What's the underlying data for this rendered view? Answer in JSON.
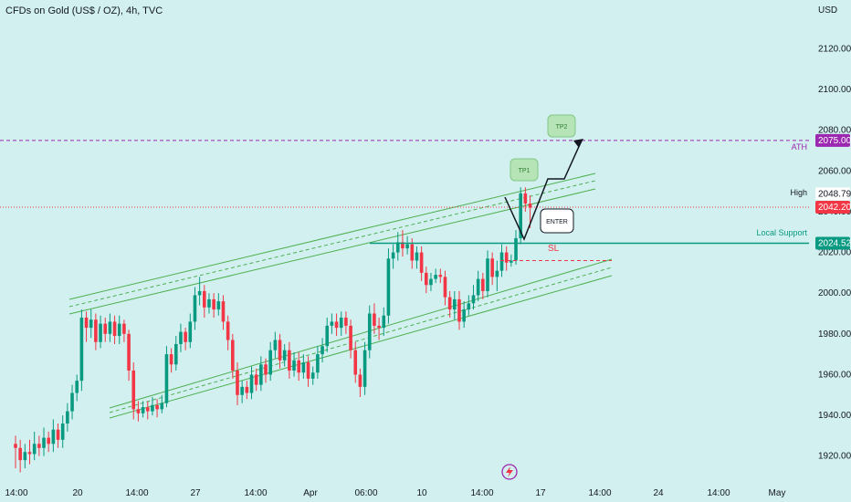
{
  "header": {
    "title": "CFDs on Gold (US$ / OZ), 4h, TVC",
    "currency": "USD"
  },
  "chart_data": {
    "type": "candlestick",
    "title": "CFDs on Gold (US$ / OZ), 4h, TVC",
    "ylabel": "USD",
    "ylim": [
      1910,
      2135
    ],
    "y_ticks": [
      2120,
      2100,
      2080,
      2060,
      2040,
      2020,
      2000,
      1980,
      1960,
      1940,
      1920
    ],
    "y_tick_labels": [
      "2120.00",
      "2100.00",
      "2080.00",
      "2060.00",
      "2040.00",
      "2020.00",
      "2000.00",
      "1980.00",
      "1960.00",
      "1940.00",
      "1920.00"
    ],
    "x_ticks": [
      "14:00",
      "20",
      "14:00",
      "27",
      "14:00",
      "Apr",
      "06:00",
      "10",
      "14:00",
      "17",
      "14:00",
      "24",
      "14:00",
      "May"
    ],
    "series": [
      {
        "kind": "candles",
        "points": [
          [
            1926,
            1924,
            1930,
            1914
          ],
          [
            1924,
            1918,
            1928,
            1912
          ],
          [
            1918,
            1922,
            1926,
            1914
          ],
          [
            1922,
            1921,
            1928,
            1916
          ],
          [
            1921,
            1926,
            1932,
            1918
          ],
          [
            1926,
            1924,
            1930,
            1920
          ],
          [
            1924,
            1929,
            1934,
            1920
          ],
          [
            1929,
            1926,
            1932,
            1922
          ],
          [
            1926,
            1933,
            1938,
            1922
          ],
          [
            1933,
            1928,
            1936,
            1924
          ],
          [
            1928,
            1936,
            1940,
            1924
          ],
          [
            1936,
            1942,
            1946,
            1932
          ],
          [
            1942,
            1951,
            1955,
            1938
          ],
          [
            1951,
            1957,
            1960,
            1947
          ],
          [
            1957,
            1988,
            1992,
            1952
          ],
          [
            1988,
            1983,
            1991,
            1976
          ],
          [
            1983,
            1987,
            1992,
            1978
          ],
          [
            1987,
            1976,
            1990,
            1972
          ],
          [
            1976,
            1985,
            1989,
            1973
          ],
          [
            1985,
            1980,
            1988,
            1976
          ],
          [
            1980,
            1986,
            1990,
            1976
          ],
          [
            1986,
            1979,
            1989,
            1975
          ],
          [
            1979,
            1985,
            1989,
            1975
          ],
          [
            1985,
            1980,
            1987,
            1976
          ],
          [
            1980,
            1962,
            1982,
            1957
          ],
          [
            1962,
            1943,
            1966,
            1938
          ],
          [
            1943,
            1941,
            1947,
            1937
          ],
          [
            1941,
            1944,
            1947,
            1939
          ],
          [
            1944,
            1942,
            1947,
            1938
          ],
          [
            1942,
            1945,
            1949,
            1940
          ],
          [
            1945,
            1943,
            1948,
            1939
          ],
          [
            1943,
            1946,
            1950,
            1941
          ],
          [
            1946,
            1970,
            1974,
            1944
          ],
          [
            1970,
            1965,
            1973,
            1961
          ],
          [
            1965,
            1975,
            1979,
            1962
          ],
          [
            1975,
            1981,
            1985,
            1971
          ],
          [
            1981,
            1976,
            1983,
            1972
          ],
          [
            1976,
            1986,
            1990,
            1973
          ],
          [
            1986,
            1999,
            2003,
            1982
          ],
          [
            1999,
            2001,
            2008,
            1994
          ],
          [
            2001,
            1993,
            2004,
            1988
          ],
          [
            1993,
            1997,
            2000,
            1990
          ],
          [
            1997,
            1992,
            2000,
            1988
          ],
          [
            1992,
            1996,
            2000,
            1989
          ],
          [
            1996,
            1986,
            1999,
            1982
          ],
          [
            1986,
            1977,
            1989,
            1972
          ],
          [
            1977,
            1962,
            1980,
            1958
          ],
          [
            1962,
            1950,
            1966,
            1945
          ],
          [
            1950,
            1954,
            1957,
            1946
          ],
          [
            1954,
            1951,
            1957,
            1948
          ],
          [
            1951,
            1960,
            1964,
            1948
          ],
          [
            1960,
            1955,
            1963,
            1952
          ],
          [
            1955,
            1965,
            1969,
            1952
          ],
          [
            1965,
            1960,
            1968,
            1956
          ],
          [
            1960,
            1972,
            1976,
            1957
          ],
          [
            1972,
            1977,
            1981,
            1968
          ],
          [
            1977,
            1967,
            1980,
            1963
          ],
          [
            1967,
            1972,
            1975,
            1964
          ],
          [
            1972,
            1962,
            1976,
            1958
          ],
          [
            1962,
            1967,
            1971,
            1959
          ],
          [
            1967,
            1961,
            1971,
            1957
          ],
          [
            1961,
            1966,
            1970,
            1958
          ],
          [
            1966,
            1958,
            1969,
            1954
          ],
          [
            1958,
            1961,
            1964,
            1955
          ],
          [
            1961,
            1970,
            1974,
            1958
          ],
          [
            1970,
            1974,
            1978,
            1966
          ],
          [
            1974,
            1984,
            1988,
            1971
          ],
          [
            1984,
            1986,
            1990,
            1980
          ],
          [
            1986,
            1983,
            1990,
            1979
          ],
          [
            1983,
            1988,
            1991,
            1979
          ],
          [
            1988,
            1984,
            1991,
            1980
          ],
          [
            1984,
            1972,
            1987,
            1968
          ],
          [
            1972,
            1960,
            1976,
            1956
          ],
          [
            1960,
            1954,
            1963,
            1949
          ],
          [
            1954,
            1972,
            1976,
            1950
          ],
          [
            1972,
            1990,
            1994,
            1968
          ],
          [
            1990,
            1984,
            1995,
            1980
          ],
          [
            1984,
            1983,
            1988,
            1977
          ],
          [
            1983,
            1989,
            1993,
            1979
          ],
          [
            1989,
            2017,
            2022,
            1985
          ],
          [
            2017,
            2020,
            2024,
            2012
          ],
          [
            2020,
            2025,
            2030,
            2016
          ],
          [
            2025,
            2022,
            2031,
            2018
          ],
          [
            2022,
            2024,
            2028,
            2019
          ],
          [
            2024,
            2016,
            2027,
            2012
          ],
          [
            2016,
            2020,
            2023,
            2012
          ],
          [
            2020,
            2010,
            2023,
            2006
          ],
          [
            2010,
            2004,
            2013,
            2000
          ],
          [
            2004,
            2007,
            2010,
            2001
          ],
          [
            2007,
            2009,
            2012,
            2005
          ],
          [
            2009,
            2008,
            2012,
            2005
          ],
          [
            2008,
            1998,
            2011,
            1994
          ],
          [
            1998,
            1992,
            2001,
            1988
          ],
          [
            1992,
            1997,
            2001,
            1987
          ],
          [
            1997,
            1986,
            2001,
            1982
          ],
          [
            1986,
            1992,
            1996,
            1983
          ],
          [
            1992,
            1995,
            1999,
            1989
          ],
          [
            1995,
            1999,
            2004,
            1992
          ],
          [
            1999,
            2007,
            2011,
            1996
          ],
          [
            2007,
            2001,
            2010,
            1997
          ],
          [
            2001,
            2017,
            2021,
            1998
          ],
          [
            2017,
            2008,
            2020,
            2004
          ],
          [
            2008,
            2011,
            2016,
            2001
          ],
          [
            2011,
            2020,
            2024,
            2008
          ],
          [
            2020,
            2015,
            2023,
            2011
          ],
          [
            2015,
            2016,
            2019,
            2013
          ],
          [
            2016,
            2027,
            2031,
            2014
          ],
          [
            2027,
            2049,
            2052,
            2024
          ],
          [
            2049,
            2044,
            2052,
            2040
          ],
          [
            2044,
            2042,
            2048,
            2032
          ]
        ]
      }
    ],
    "x_start": "Mar 18 14:00",
    "interval": "4h",
    "price_labels": [
      {
        "text": "2075.00",
        "value": 2075.0,
        "color": "#9c27b0",
        "note": "ATH"
      },
      {
        "text": "2048.79",
        "value": 2048.79,
        "color": "#ffffff",
        "note": "High"
      },
      {
        "text": "2042.20",
        "value": 2042.2,
        "color": "#f23645",
        "note": ""
      },
      {
        "text": "2024.52",
        "value": 2024.52,
        "color": "#089981",
        "note": "Local Support"
      }
    ],
    "annotations": {
      "tp1": "TP1",
      "tp2": "TP2",
      "enter": "ENTER",
      "sl": "SL",
      "local_support": "Local Support",
      "ath": "ATH",
      "high": "High"
    },
    "colors": {
      "background": "#d2f0ef",
      "up": "#089981",
      "down": "#f23645",
      "channel": "#4caf50",
      "ath_line": "#9c27b0",
      "support": "#089981"
    }
  }
}
